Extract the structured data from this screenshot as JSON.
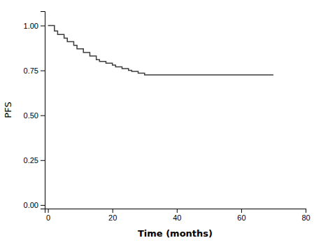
{
  "chart_data": {
    "type": "step",
    "xlabel": "Time (months)",
    "ylabel": "PFS",
    "x": [
      0,
      2,
      3,
      5,
      6,
      8,
      9,
      11,
      13,
      15,
      16,
      18,
      20,
      21,
      23,
      25,
      26,
      28,
      30,
      70
    ],
    "values": [
      1.0,
      0.97,
      0.95,
      0.93,
      0.91,
      0.89,
      0.87,
      0.85,
      0.83,
      0.81,
      0.8,
      0.79,
      0.78,
      0.77,
      0.76,
      0.75,
      0.745,
      0.735,
      0.725,
      0.725
    ],
    "color": "#3c3c3c",
    "xlim": [
      -1,
      80
    ],
    "xticks": [
      0,
      20,
      40,
      60,
      80
    ],
    "ylim": [
      -0.02,
      1.08
    ],
    "yticks": [
      {
        "value": 0.0,
        "label": "0.00"
      },
      {
        "value": 0.25,
        "label": "0.25"
      },
      {
        "value": 0.5,
        "label": "0.50"
      },
      {
        "value": 0.75,
        "label": "0.75"
      },
      {
        "value": 1.0,
        "label": "1.00"
      }
    ],
    "grid": false
  }
}
